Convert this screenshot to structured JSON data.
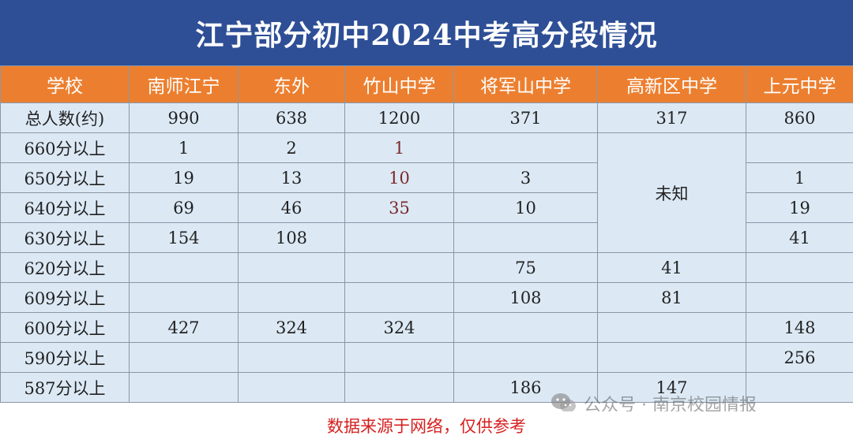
{
  "title": "江宁部分初中2024中考高分段情况",
  "header": [
    "学校",
    "南师江宁",
    "东外",
    "竹山中学",
    "将军山中学",
    "高新区中学",
    "上元中学"
  ],
  "rows": [
    {
      "label": "总人数(约)",
      "cells": [
        "990",
        "638",
        "1200",
        "371",
        "317",
        "860"
      ]
    },
    {
      "label": "660分以上",
      "cells": [
        "1",
        "2",
        "1",
        "",
        "",
        ""
      ]
    },
    {
      "label": "650分以上",
      "cells": [
        "19",
        "13",
        "10",
        "3",
        "",
        "1"
      ]
    },
    {
      "label": "640分以上",
      "cells": [
        "69",
        "46",
        "35",
        "10",
        "",
        "19"
      ]
    },
    {
      "label": "630分以上",
      "cells": [
        "154",
        "108",
        "",
        "",
        "",
        "41"
      ]
    },
    {
      "label": "620分以上",
      "cells": [
        "",
        "",
        "",
        "75",
        "41",
        ""
      ]
    },
    {
      "label": "609分以上",
      "cells": [
        "",
        "",
        "",
        "108",
        "81",
        ""
      ]
    },
    {
      "label": "600分以上",
      "cells": [
        "427",
        "324",
        "324",
        "",
        "",
        "148"
      ]
    },
    {
      "label": "590分以上",
      "cells": [
        "",
        "",
        "",
        "",
        "",
        "256"
      ]
    },
    {
      "label": "587分以上",
      "cells": [
        "",
        "",
        "",
        "186",
        "147",
        ""
      ]
    }
  ],
  "unknown_label": "未知",
  "footer": "数据来源于网络，仅供参考",
  "watermark": "公众号 · 南京校园情报",
  "colors": {
    "title_bg": "#2e4f96",
    "header_bg": "#ec7f2f",
    "cell_bg": "#dce9f5",
    "footer_text": "#d62020"
  },
  "icons": [
    "wechat-icon"
  ]
}
